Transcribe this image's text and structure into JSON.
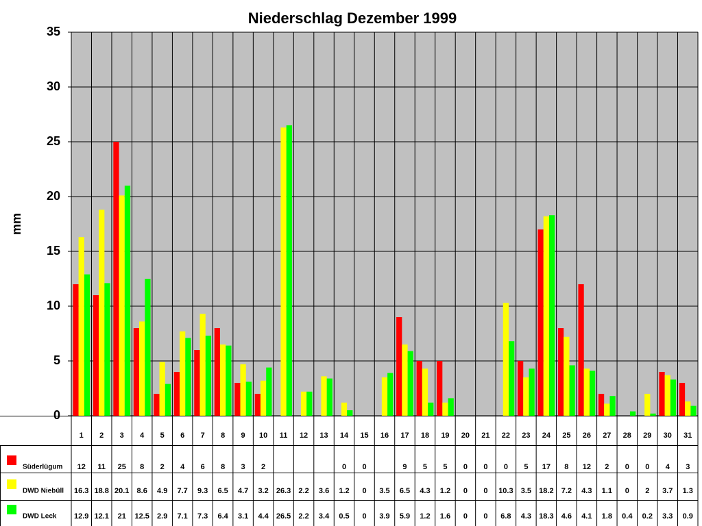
{
  "chart_data": {
    "type": "bar",
    "title": "Niederschlag Dezember 1999",
    "y_label": "mm",
    "categories": [
      "1",
      "2",
      "3",
      "4",
      "5",
      "6",
      "7",
      "8",
      "9",
      "10",
      "11",
      "12",
      "13",
      "14",
      "15",
      "16",
      "17",
      "18",
      "19",
      "20",
      "21",
      "22",
      "23",
      "24",
      "25",
      "26",
      "27",
      "28",
      "29",
      "30",
      "31"
    ],
    "series": [
      {
        "name": "Süderlügum",
        "color": "#ff0000",
        "values": [
          12,
          11,
          25,
          8,
          2,
          4,
          6,
          8,
          3,
          2,
          null,
          null,
          null,
          0,
          0,
          null,
          9,
          5,
          5,
          0,
          0,
          0,
          5,
          17,
          8,
          12,
          2,
          0,
          0,
          4,
          3
        ]
      },
      {
        "name": "DWD Niebüll",
        "color": "#ffff00",
        "values": [
          16.3,
          18.8,
          20.1,
          8.6,
          4.9,
          7.7,
          9.3,
          6.5,
          4.7,
          3.2,
          26.3,
          2.2,
          3.6,
          1.2,
          0,
          3.5,
          6.5,
          4.3,
          1.2,
          0,
          0,
          10.3,
          3.5,
          18.2,
          7.2,
          4.3,
          1.1,
          0,
          2,
          3.7,
          1.3
        ]
      },
      {
        "name": "DWD Leck",
        "color": "#00ff00",
        "values": [
          12.9,
          12.1,
          21,
          12.5,
          2.9,
          7.1,
          7.3,
          6.4,
          3.1,
          4.4,
          26.5,
          2.2,
          3.4,
          0.5,
          0,
          3.9,
          5.9,
          1.2,
          1.6,
          0,
          0,
          6.8,
          4.3,
          18.3,
          4.6,
          4.1,
          1.8,
          0.4,
          0.2,
          3.3,
          0.9
        ]
      }
    ],
    "ylim": [
      0,
      35
    ],
    "yticks": [
      0,
      5,
      10,
      15,
      20,
      25,
      30,
      35
    ],
    "grid": true
  }
}
